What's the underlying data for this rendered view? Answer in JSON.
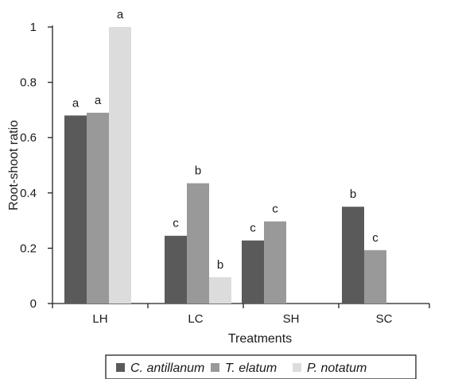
{
  "chart_data": {
    "type": "bar",
    "title": "",
    "xlabel": "Treatments",
    "ylabel": "Root-shoot ratio",
    "ylim": [
      0,
      1
    ],
    "yticks": [
      "0",
      "0.2",
      "0.4",
      "0.6",
      "0.8",
      "1"
    ],
    "categories": [
      "LH",
      "LC",
      "SH",
      "SC"
    ],
    "grid": false,
    "legend_position": "bottom",
    "series": [
      {
        "name": "C. antillanum",
        "color": "#5a5a5a",
        "values": [
          0.68,
          0.245,
          0.228,
          0.35
        ],
        "labels": [
          "a",
          "c",
          "c",
          "b"
        ]
      },
      {
        "name": "T. elatum",
        "color": "#999999",
        "values": [
          0.69,
          0.435,
          0.297,
          0.193
        ],
        "labels": [
          "a",
          "b",
          "c",
          "c"
        ]
      },
      {
        "name": "P. notatum",
        "color": "#dcdcdc",
        "values": [
          1.0,
          0.095,
          null,
          null
        ],
        "labels": [
          "a",
          "b",
          null,
          null
        ]
      }
    ]
  }
}
